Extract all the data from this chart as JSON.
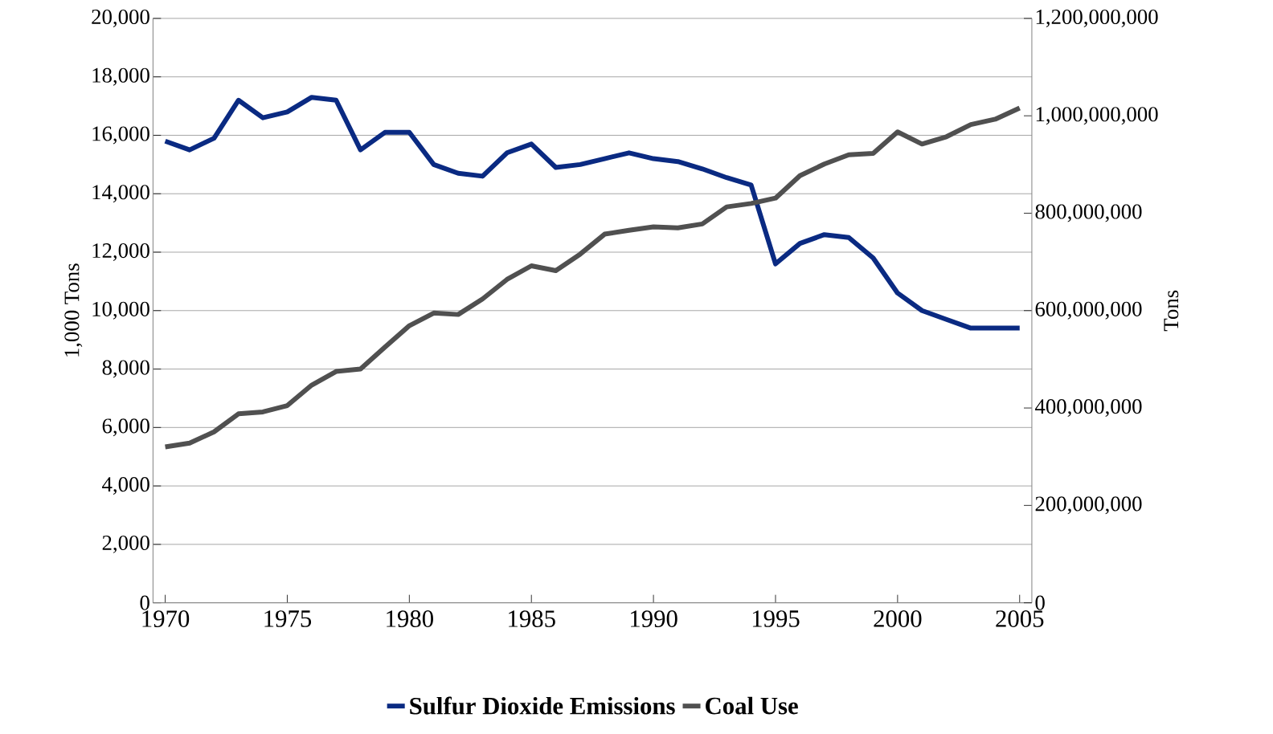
{
  "chart_data": {
    "type": "line",
    "x": [
      1970,
      1971,
      1972,
      1973,
      1974,
      1975,
      1976,
      1977,
      1978,
      1979,
      1980,
      1981,
      1982,
      1983,
      1984,
      1985,
      1986,
      1987,
      1988,
      1989,
      1990,
      1991,
      1992,
      1993,
      1994,
      1995,
      1996,
      1997,
      1998,
      1999,
      2000,
      2001,
      2002,
      2003,
      2004,
      2005
    ],
    "series": [
      {
        "name": "Sulfur Dioxide Emissions",
        "color": "#0a2a82",
        "axis": "y",
        "values": [
          15800,
          15500,
          15900,
          17200,
          16600,
          16800,
          17300,
          17200,
          15500,
          16100,
          16100,
          15000,
          14700,
          14600,
          15400,
          15700,
          14900,
          15000,
          15200,
          15400,
          15200,
          15100,
          14850,
          14550,
          14300,
          11600,
          12300,
          12600,
          12500,
          11800,
          10600,
          10000,
          9700,
          9400,
          9400,
          9400
        ]
      },
      {
        "name": "Coal Use",
        "color": "#505050",
        "axis": "y2",
        "values": [
          320000000,
          328000000,
          351000000,
          388000000,
          392000000,
          405000000,
          447000000,
          475000000,
          480000000,
          525000000,
          569000000,
          595000000,
          592000000,
          624000000,
          664000000,
          692000000,
          682000000,
          716000000,
          757000000,
          765000000,
          772000000,
          770000000,
          778000000,
          813000000,
          820000000,
          831000000,
          877000000,
          901000000,
          920000000,
          923000000,
          967000000,
          942000000,
          957000000,
          982000000,
          993000000,
          1016000000
        ]
      }
    ],
    "xlim": [
      1969.5,
      2005.5
    ],
    "xticks": [
      1970,
      1975,
      1980,
      1985,
      1990,
      1995,
      2000,
      2005
    ],
    "ylim": [
      0,
      20000
    ],
    "yticks": [
      0,
      {
        "value": 2000,
        "label": "2,000"
      },
      {
        "value": 4000,
        "label": "4,000"
      },
      {
        "value": 6000,
        "label": "6,000"
      },
      {
        "value": 8000,
        "label": "8,000"
      },
      {
        "value": 10000,
        "label": "10,000"
      },
      {
        "value": 12000,
        "label": "12,000"
      },
      {
        "value": 14000,
        "label": "14,000"
      },
      {
        "value": 16000,
        "label": "16,000"
      },
      {
        "value": 18000,
        "label": "18,000"
      },
      {
        "value": 20000,
        "label": "20,000"
      }
    ],
    "y2lim": [
      0,
      1200000000
    ],
    "y2ticks": [
      0,
      {
        "value": 200000000,
        "label": "200,000,000"
      },
      {
        "value": 400000000,
        "label": "400,000,000"
      },
      {
        "value": 600000000,
        "label": "600,000,000"
      },
      {
        "value": 800000000,
        "label": "800,000,000"
      },
      {
        "value": 1000000000,
        "label": "1,000,000,000"
      },
      {
        "value": 1200000000,
        "label": "1,200,000,000"
      }
    ],
    "ylabel": "1,000 Tons",
    "y2label": "Tons",
    "grid": "y",
    "legend": "bottom",
    "line_style": "solid"
  }
}
